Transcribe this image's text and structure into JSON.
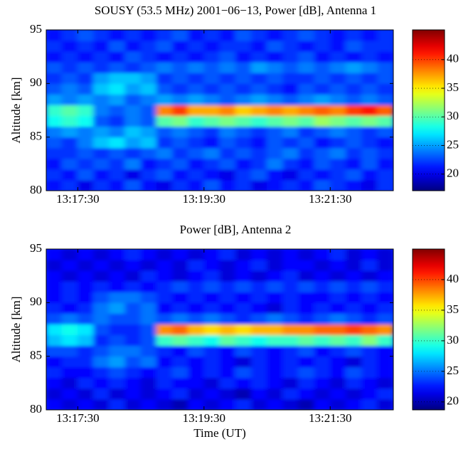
{
  "chart_data": [
    {
      "type": "heatmap",
      "title": "SOUSY (53.5 MHz) 2001−06−13, Power [dB], Antenna 1",
      "ylabel": "Altitude [km]",
      "colormap": "jet",
      "x": [
        47827.5,
        47842.5,
        47857.5,
        47872.5,
        47887.5,
        47902.5,
        47917.5,
        47932.5,
        47947.5,
        47962.5,
        47977.5,
        47992.5,
        48007.5,
        48022.5,
        48037.5,
        48052.5,
        48067.5,
        48082.5,
        48097.5,
        48112.5,
        48127.5,
        48142.5
      ],
      "y": [
        80.5,
        81.5,
        82.5,
        83.5,
        84.5,
        85.5,
        86.5,
        87.5,
        88.5,
        89.5,
        90.5,
        91.5,
        92.5,
        93.5,
        94.5
      ],
      "z": [
        [
          21,
          22,
          20,
          22,
          21,
          23,
          21,
          20,
          22,
          21,
          23,
          21,
          22,
          20,
          21,
          22,
          21,
          23,
          22,
          21,
          20,
          22
        ],
        [
          22,
          21,
          23,
          21,
          22,
          20,
          22,
          23,
          21,
          22,
          21,
          20,
          22,
          23,
          21,
          20,
          22,
          21,
          22,
          23,
          21,
          22
        ],
        [
          21,
          23,
          22,
          23,
          22,
          24,
          21,
          22,
          23,
          21,
          22,
          23,
          21,
          22,
          24,
          22,
          21,
          23,
          22,
          21,
          23,
          21
        ],
        [
          22,
          22,
          23,
          22,
          23,
          22,
          23,
          24,
          22,
          23,
          24,
          22,
          23,
          22,
          23,
          24,
          22,
          23,
          24,
          22,
          23,
          22
        ],
        [
          23,
          22,
          24,
          26,
          27,
          25,
          26,
          22,
          23,
          22,
          21,
          23,
          22,
          21,
          23,
          22,
          23,
          21,
          22,
          23,
          22,
          21
        ],
        [
          24,
          25,
          24,
          25,
          24,
          26,
          25,
          23,
          24,
          23,
          22,
          24,
          23,
          22,
          23,
          24,
          22,
          23,
          24,
          23,
          22,
          23
        ],
        [
          28,
          29,
          28,
          23,
          22,
          24,
          23,
          30,
          31,
          29,
          30,
          31,
          30,
          29,
          30,
          31,
          30,
          32,
          31,
          30,
          31,
          30
        ],
        [
          29,
          30,
          29,
          24,
          23,
          24,
          23,
          38,
          40,
          37,
          37,
          38,
          36,
          37,
          38,
          37,
          38,
          39,
          38,
          40,
          41,
          39
        ],
        [
          25,
          24,
          25,
          24,
          25,
          23,
          24,
          25,
          24,
          25,
          24,
          23,
          24,
          25,
          24,
          23,
          24,
          25,
          24,
          23,
          24,
          23
        ],
        [
          23,
          24,
          23,
          26,
          27,
          25,
          26,
          23,
          22,
          23,
          22,
          23,
          22,
          23,
          22,
          21,
          23,
          22,
          23,
          22,
          23,
          22
        ],
        [
          22,
          23,
          22,
          25,
          26,
          26,
          25,
          22,
          23,
          22,
          23,
          22,
          23,
          22,
          23,
          22,
          22,
          23,
          22,
          23,
          22,
          23
        ],
        [
          23,
          22,
          23,
          22,
          23,
          22,
          23,
          24,
          23,
          24,
          23,
          24,
          23,
          25,
          24,
          23,
          24,
          23,
          24,
          25,
          24,
          23
        ],
        [
          21,
          22,
          21,
          22,
          21,
          23,
          22,
          21,
          22,
          21,
          22,
          23,
          21,
          22,
          21,
          22,
          23,
          21,
          22,
          21,
          22,
          21
        ],
        [
          22,
          21,
          22,
          21,
          23,
          21,
          22,
          23,
          21,
          22,
          21,
          22,
          22,
          21,
          23,
          22,
          21,
          22,
          21,
          23,
          22,
          22
        ],
        [
          21,
          22,
          23,
          22,
          21,
          22,
          21,
          22,
          23,
          21,
          22,
          21,
          23,
          22,
          21,
          22,
          23,
          22,
          21,
          22,
          21,
          22
        ]
      ],
      "xlim": [
        47820,
        48150
      ],
      "ylim": [
        80,
        95
      ],
      "xticks": [
        {
          "value": 47850,
          "label": "13:17:30"
        },
        {
          "value": 47970,
          "label": "13:19:30"
        },
        {
          "value": 48090,
          "label": "13:21:30"
        }
      ],
      "yticks": [
        80,
        85,
        90,
        95
      ],
      "clim": [
        17.1,
        45.2
      ],
      "cticks": [
        20,
        25,
        30,
        35,
        40
      ]
    },
    {
      "type": "heatmap",
      "title": "Power [dB], Antenna 2",
      "ylabel": "Altitude [km]",
      "xlabel": "Time (UT)",
      "colormap": "jet",
      "x": [
        47827.5,
        47842.5,
        47857.5,
        47872.5,
        47887.5,
        47902.5,
        47917.5,
        47932.5,
        47947.5,
        47962.5,
        47977.5,
        47992.5,
        48007.5,
        48022.5,
        48037.5,
        48052.5,
        48067.5,
        48082.5,
        48097.5,
        48112.5,
        48127.5,
        48142.5
      ],
      "y": [
        80.5,
        81.5,
        82.5,
        83.5,
        84.5,
        85.5,
        86.5,
        87.5,
        88.5,
        89.5,
        90.5,
        91.5,
        92.5,
        93.5,
        94.5
      ],
      "z": [
        [
          22,
          21,
          22,
          21,
          23,
          21,
          22,
          21,
          20,
          22,
          21,
          22,
          23,
          21,
          22,
          21,
          20,
          22,
          21,
          22,
          23,
          21
        ],
        [
          21,
          22,
          21,
          23,
          21,
          22,
          21,
          22,
          23,
          21,
          22,
          21,
          20,
          22,
          21,
          23,
          22,
          21,
          22,
          21,
          22,
          23
        ],
        [
          22,
          21,
          23,
          22,
          23,
          22,
          21,
          23,
          22,
          22,
          21,
          23,
          22,
          23,
          22,
          21,
          23,
          22,
          21,
          23,
          22,
          21
        ],
        [
          23,
          22,
          22,
          23,
          24,
          23,
          22,
          23,
          24,
          22,
          23,
          22,
          24,
          23,
          22,
          23,
          24,
          23,
          22,
          24,
          23,
          22
        ],
        [
          22,
          23,
          23,
          25,
          26,
          24,
          25,
          22,
          23,
          22,
          23,
          22,
          21,
          23,
          22,
          23,
          22,
          23,
          22,
          21,
          23,
          22
        ],
        [
          24,
          24,
          23,
          24,
          25,
          25,
          24,
          23,
          22,
          24,
          23,
          22,
          24,
          23,
          22,
          23,
          24,
          22,
          23,
          24,
          23,
          22
        ],
        [
          27,
          28,
          27,
          23,
          24,
          23,
          24,
          30,
          31,
          30,
          29,
          31,
          30,
          29,
          30,
          30,
          31,
          30,
          31,
          30,
          32,
          30
        ],
        [
          28,
          29,
          28,
          24,
          23,
          23,
          24,
          38,
          39,
          37,
          36,
          37,
          36,
          37,
          37,
          38,
          38,
          39,
          39,
          40,
          39,
          38
        ],
        [
          24,
          25,
          24,
          25,
          24,
          24,
          25,
          24,
          25,
          24,
          25,
          24,
          23,
          24,
          25,
          24,
          23,
          24,
          25,
          24,
          23,
          24
        ],
        [
          23,
          22,
          23,
          25,
          26,
          24,
          25,
          22,
          23,
          22,
          23,
          22,
          23,
          22,
          21,
          23,
          22,
          23,
          22,
          23,
          22,
          23
        ],
        [
          22,
          23,
          22,
          24,
          25,
          25,
          24,
          23,
          22,
          23,
          22,
          23,
          22,
          23,
          22,
          23,
          22,
          22,
          23,
          22,
          23,
          22
        ],
        [
          22,
          23,
          22,
          23,
          22,
          23,
          22,
          23,
          24,
          23,
          24,
          23,
          24,
          23,
          24,
          23,
          24,
          23,
          24,
          23,
          24,
          23
        ],
        [
          22,
          21,
          22,
          21,
          22,
          21,
          23,
          22,
          21,
          22,
          23,
          21,
          22,
          21,
          22,
          23,
          21,
          22,
          21,
          22,
          21,
          22
        ],
        [
          21,
          22,
          21,
          22,
          21,
          22,
          21,
          22,
          21,
          23,
          22,
          21,
          22,
          23,
          21,
          22,
          22,
          21,
          22,
          21,
          23,
          21
        ],
        [
          22,
          21,
          22,
          21,
          22,
          23,
          22,
          21,
          22,
          21,
          22,
          23,
          21,
          22,
          21,
          22,
          21,
          22,
          23,
          21,
          22,
          21
        ]
      ],
      "xlim": [
        47820,
        48150
      ],
      "ylim": [
        80,
        95
      ],
      "xticks": [
        {
          "value": 47850,
          "label": "13:17:30"
        },
        {
          "value": 47970,
          "label": "13:19:30"
        },
        {
          "value": 48090,
          "label": "13:21:30"
        }
      ],
      "yticks": [
        80,
        85,
        90,
        95
      ],
      "clim": [
        18.7,
        45.0
      ],
      "cticks": [
        20,
        25,
        30,
        35,
        40
      ]
    }
  ]
}
